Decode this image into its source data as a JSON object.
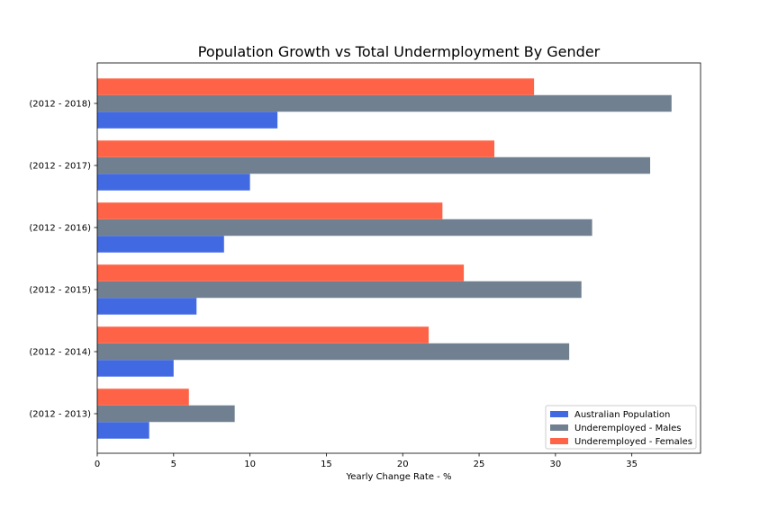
{
  "chart_data": {
    "type": "bar",
    "orientation": "horizontal",
    "title": "Population Growth vs Total Undermployment By Gender",
    "xlabel": "Yearly Change Rate - %",
    "ylabel": "",
    "xlim": [
      0,
      39.5
    ],
    "xticks": [
      0,
      5,
      10,
      15,
      20,
      25,
      30,
      35
    ],
    "grid": false,
    "legend_position": "lower-right",
    "categories": [
      "(2012 - 2013)",
      "(2012 - 2014)",
      "(2012 - 2015)",
      "(2012 - 2016)",
      "(2012 - 2017)",
      "(2012 - 2018)"
    ],
    "series": [
      {
        "name": "Australian Population",
        "color": "#4169e1",
        "values": [
          3.4,
          5.0,
          6.5,
          8.3,
          10.0,
          11.8
        ]
      },
      {
        "name": "Underemployed - Males",
        "color": "#708090",
        "values": [
          9.0,
          30.9,
          31.7,
          32.4,
          36.2,
          37.6
        ]
      },
      {
        "name": "Underemployed - Females",
        "color": "#ff6347",
        "values": [
          6.0,
          21.7,
          24.0,
          22.6,
          26.0,
          28.6
        ]
      }
    ]
  }
}
